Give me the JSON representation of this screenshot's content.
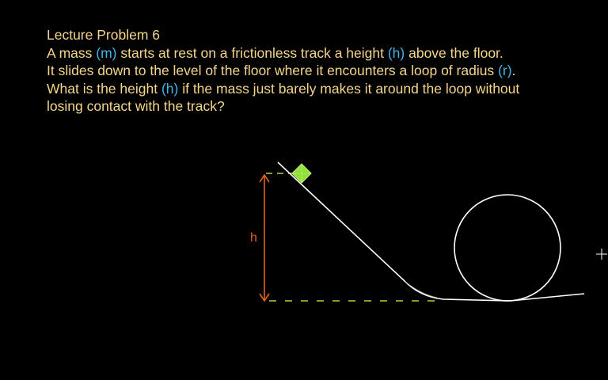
{
  "lecture": {
    "title": "Lecture Problem 6",
    "line1": {
      "a": "A mass ",
      "m": "(m)",
      "b": " starts at rest on a frictionless track a height ",
      "h": "(h)",
      "c": " above the floor."
    },
    "line2": {
      "a": "It slides down to the level of the floor where it encounters a loop of radius ",
      "r": "(r)",
      "b": "."
    },
    "line3": {
      "a": "What is the height ",
      "h": "(h)",
      "b": " if the mass just barely makes it around the loop without"
    },
    "line4": "losing contact with the track?"
  },
  "diagram": {
    "height_label": "h",
    "colors": {
      "track": "#ffffff",
      "height_arrow": "#e0621e",
      "dashed_guides": "#b5d23a",
      "mass": "#8ee03a",
      "text": "#f5d58a",
      "variables": "#3fb6e8"
    }
  },
  "icons": {
    "cursor": "crosshair-cursor-icon"
  }
}
